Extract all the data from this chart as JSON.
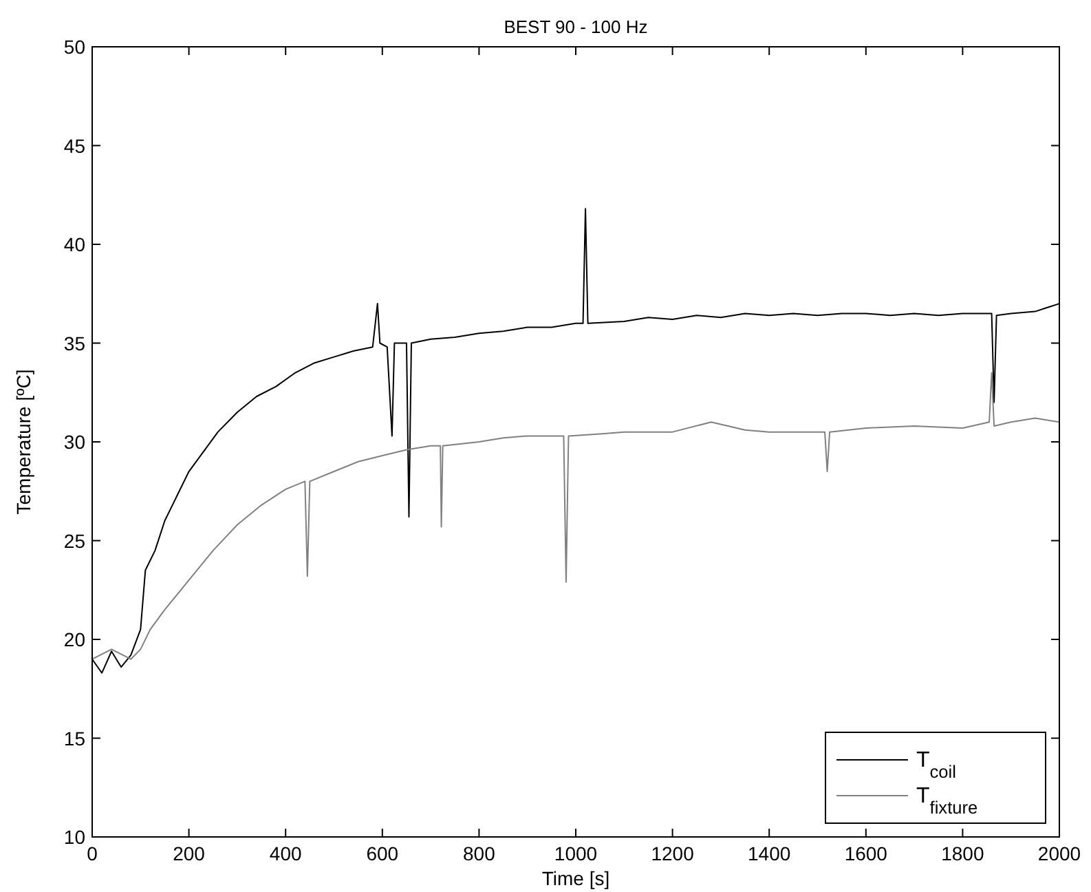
{
  "chart_data": {
    "type": "line",
    "title": "BEST 90 - 100 Hz",
    "xlabel": "Time [s]",
    "ylabel": "Temperature [ºC]",
    "xlim": [
      0,
      2000
    ],
    "ylim": [
      10,
      50
    ],
    "xticks": [
      0,
      200,
      400,
      600,
      800,
      1000,
      1200,
      1400,
      1600,
      1800,
      2000
    ],
    "yticks": [
      10,
      15,
      20,
      25,
      30,
      35,
      40,
      45,
      50
    ],
    "grid": false,
    "legend": "bottom right",
    "marker": "none",
    "line_style": "solid",
    "series": [
      {
        "name": "T$_{coil}$",
        "color": "#000000",
        "x": [
          0,
          20,
          40,
          60,
          80,
          100,
          110,
          130,
          150,
          170,
          200,
          230,
          260,
          300,
          340,
          380,
          420,
          460,
          500,
          540,
          580,
          590,
          595,
          610,
          620,
          625,
          650,
          655,
          660,
          700,
          750,
          800,
          850,
          900,
          950,
          1000,
          1015,
          1020,
          1025,
          1100,
          1150,
          1200,
          1250,
          1300,
          1350,
          1400,
          1450,
          1500,
          1550,
          1600,
          1650,
          1700,
          1750,
          1800,
          1860,
          1865,
          1870,
          1900,
          1950,
          2000
        ],
        "values": [
          19,
          18.3,
          19.4,
          18.6,
          19.2,
          20.5,
          23.5,
          24.5,
          26,
          27,
          28.5,
          29.5,
          30.5,
          31.5,
          32.3,
          32.8,
          33.5,
          34,
          34.3,
          34.6,
          34.8,
          37,
          35,
          34.8,
          30.3,
          35,
          35,
          26.2,
          35,
          35.2,
          35.3,
          35.5,
          35.6,
          35.8,
          35.8,
          36,
          36,
          41.8,
          36,
          36.1,
          36.3,
          36.2,
          36.4,
          36.3,
          36.5,
          36.4,
          36.5,
          36.4,
          36.5,
          36.5,
          36.4,
          36.5,
          36.4,
          36.5,
          36.5,
          32,
          36.4,
          36.5,
          36.6,
          37
        ]
      },
      {
        "name": "T$_{fixture}$",
        "color": "#808080",
        "x": [
          0,
          40,
          80,
          100,
          120,
          150,
          200,
          250,
          300,
          350,
          400,
          440,
          445,
          450,
          500,
          550,
          600,
          650,
          700,
          720,
          722,
          725,
          800,
          850,
          900,
          975,
          980,
          985,
          1050,
          1100,
          1200,
          1280,
          1350,
          1400,
          1450,
          1515,
          1520,
          1525,
          1600,
          1700,
          1800,
          1855,
          1860,
          1865,
          1900,
          1950,
          2000
        ],
        "values": [
          19,
          19.5,
          19,
          19.5,
          20.5,
          21.5,
          23,
          24.5,
          25.8,
          26.8,
          27.6,
          28,
          23.2,
          28,
          28.5,
          29,
          29.3,
          29.6,
          29.8,
          29.8,
          25.7,
          29.8,
          30,
          30.2,
          30.3,
          30.3,
          22.9,
          30.3,
          30.4,
          30.5,
          30.5,
          31,
          30.6,
          30.5,
          30.5,
          30.5,
          28.5,
          30.5,
          30.7,
          30.8,
          30.7,
          31,
          33.5,
          30.8,
          31,
          31.2,
          31
        ]
      }
    ]
  }
}
